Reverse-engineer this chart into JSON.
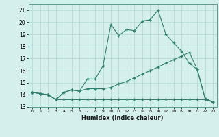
{
  "xlabel": "Humidex (Indice chaleur)",
  "x": [
    0,
    1,
    2,
    3,
    4,
    5,
    6,
    7,
    8,
    9,
    10,
    11,
    12,
    13,
    14,
    15,
    16,
    17,
    18,
    19,
    20,
    21,
    22,
    23
  ],
  "line1": [
    14.2,
    14.1,
    14.0,
    13.6,
    14.2,
    14.4,
    14.3,
    15.3,
    15.3,
    16.4,
    19.8,
    18.9,
    19.4,
    19.3,
    20.1,
    20.2,
    21.0,
    19.0,
    18.3,
    17.6,
    16.6,
    16.1,
    13.7,
    13.4
  ],
  "line2": [
    14.2,
    14.1,
    14.0,
    13.6,
    14.2,
    14.4,
    14.3,
    14.5,
    14.5,
    14.5,
    14.6,
    14.9,
    15.1,
    15.4,
    15.7,
    16.0,
    16.3,
    16.6,
    16.9,
    17.2,
    17.5,
    16.1,
    13.7,
    13.4
  ],
  "line3": [
    14.2,
    14.1,
    14.0,
    13.6,
    13.6,
    13.6,
    13.6,
    13.6,
    13.6,
    13.6,
    13.6,
    13.6,
    13.6,
    13.6,
    13.6,
    13.6,
    13.6,
    13.6,
    13.6,
    13.6,
    13.6,
    13.6,
    13.6,
    13.4
  ],
  "line_color": "#2e7d6e",
  "bg_color": "#d4efec",
  "grid_color": "#b0d8d2",
  "ylim": [
    13,
    21.5
  ],
  "yticks": [
    13,
    14,
    15,
    16,
    17,
    18,
    19,
    20,
    21
  ],
  "xlim": [
    -0.5,
    23.5
  ],
  "xtick_labels": [
    "0",
    "1",
    "2",
    "3",
    "4",
    "5",
    "6",
    "7",
    "8",
    "9",
    "10",
    "11",
    "12",
    "13",
    "14",
    "15",
    "16",
    "17",
    "18",
    "19",
    "20",
    "21",
    "22",
    "23"
  ]
}
